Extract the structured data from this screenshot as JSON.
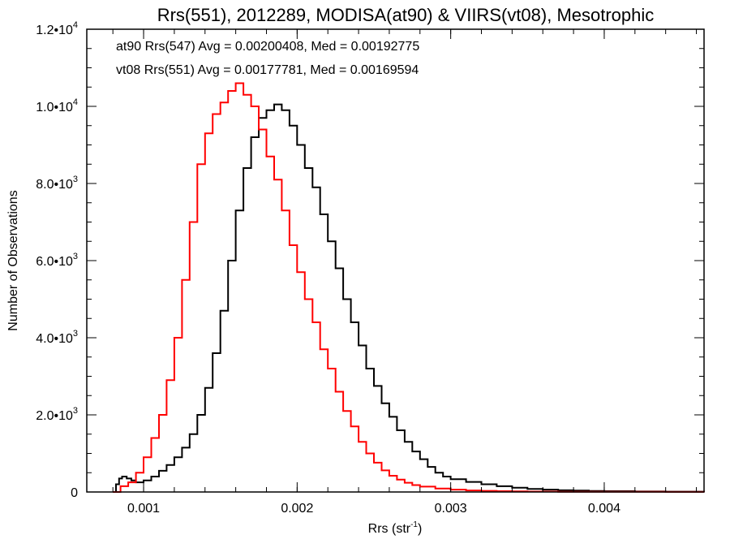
{
  "chart_data": {
    "type": "line",
    "title": "Rrs(551), 2012289, MODISA(at90) & VIIRS(vt08), Mesotrophic",
    "xlabel_main": "Rrs (str",
    "xlabel_sup": "-1",
    "xlabel_close": ")",
    "ylabel": "Number of Observations",
    "xlim": [
      0.00063,
      0.00465
    ],
    "ylim": [
      0,
      12000
    ],
    "x_ticks": [
      {
        "value": 0.001,
        "label": "0.001"
      },
      {
        "value": 0.002,
        "label": "0.002"
      },
      {
        "value": 0.003,
        "label": "0.003"
      },
      {
        "value": 0.004,
        "label": "0.004"
      }
    ],
    "y_ticks": [
      {
        "value": 0,
        "label": "0",
        "sup": ""
      },
      {
        "value": 2000,
        "label": "2.0•10",
        "sup": "3"
      },
      {
        "value": 4000,
        "label": "4.0•10",
        "sup": "3"
      },
      {
        "value": 6000,
        "label": "6.0•10",
        "sup": "3"
      },
      {
        "value": 8000,
        "label": "8.0•10",
        "sup": "3"
      },
      {
        "value": 10000,
        "label": "1.0•10",
        "sup": "4"
      },
      {
        "value": 12000,
        "label": "1.2•10",
        "sup": "4"
      }
    ],
    "annotations": [
      {
        "text": "at90 Rrs(547) Avg = 0.00200408, Med = 0.00192775",
        "color": "#000000"
      },
      {
        "text": "vt08 Rrs(551) Avg = 0.00177781, Med = 0.00169594",
        "color": "#ff0000"
      }
    ],
    "series": [
      {
        "color": "#000000",
        "points": [
          [
            0.0008,
            0
          ],
          [
            0.00082,
            200
          ],
          [
            0.00084,
            350
          ],
          [
            0.00086,
            400
          ],
          [
            0.00089,
            350
          ],
          [
            0.00092,
            300
          ],
          [
            0.00095,
            250
          ],
          [
            0.001,
            300
          ],
          [
            0.00105,
            400
          ],
          [
            0.0011,
            550
          ],
          [
            0.00115,
            700
          ],
          [
            0.0012,
            900
          ],
          [
            0.00125,
            1150
          ],
          [
            0.0013,
            1500
          ],
          [
            0.00135,
            2000
          ],
          [
            0.0014,
            2700
          ],
          [
            0.00145,
            3600
          ],
          [
            0.0015,
            4700
          ],
          [
            0.00155,
            6000
          ],
          [
            0.0016,
            7300
          ],
          [
            0.00165,
            8400
          ],
          [
            0.0017,
            9200
          ],
          [
            0.00175,
            9700
          ],
          [
            0.0018,
            9900
          ],
          [
            0.00185,
            10050
          ],
          [
            0.0019,
            9900
          ],
          [
            0.00195,
            9500
          ],
          [
            0.002,
            9000
          ],
          [
            0.00205,
            8400
          ],
          [
            0.0021,
            7900
          ],
          [
            0.00215,
            7200
          ],
          [
            0.0022,
            6500
          ],
          [
            0.00225,
            5800
          ],
          [
            0.0023,
            5000
          ],
          [
            0.00235,
            4400
          ],
          [
            0.0024,
            3800
          ],
          [
            0.00245,
            3200
          ],
          [
            0.0025,
            2750
          ],
          [
            0.00255,
            2300
          ],
          [
            0.0026,
            1950
          ],
          [
            0.00265,
            1600
          ],
          [
            0.0027,
            1300
          ],
          [
            0.00275,
            1050
          ],
          [
            0.0028,
            850
          ],
          [
            0.00285,
            650
          ],
          [
            0.0029,
            500
          ],
          [
            0.00295,
            400
          ],
          [
            0.003,
            330
          ],
          [
            0.0031,
            260
          ],
          [
            0.0032,
            200
          ],
          [
            0.0033,
            150
          ],
          [
            0.0034,
            110
          ],
          [
            0.0035,
            80
          ],
          [
            0.0036,
            60
          ],
          [
            0.0037,
            45
          ],
          [
            0.0038,
            35
          ],
          [
            0.0039,
            25
          ],
          [
            0.004,
            20
          ],
          [
            0.0042,
            12
          ],
          [
            0.0044,
            8
          ],
          [
            0.00465,
            5
          ]
        ]
      },
      {
        "color": "#ff0000",
        "points": [
          [
            0.0008,
            0
          ],
          [
            0.00085,
            150
          ],
          [
            0.0009,
            250
          ],
          [
            0.00095,
            500
          ],
          [
            0.001,
            900
          ],
          [
            0.00105,
            1400
          ],
          [
            0.0011,
            2000
          ],
          [
            0.00115,
            2900
          ],
          [
            0.0012,
            4000
          ],
          [
            0.00125,
            5500
          ],
          [
            0.0013,
            7000
          ],
          [
            0.00135,
            8500
          ],
          [
            0.0014,
            9300
          ],
          [
            0.00145,
            9800
          ],
          [
            0.0015,
            10100
          ],
          [
            0.00155,
            10400
          ],
          [
            0.0016,
            10600
          ],
          [
            0.00165,
            10300
          ],
          [
            0.0017,
            10000
          ],
          [
            0.00175,
            9400
          ],
          [
            0.0018,
            8700
          ],
          [
            0.00185,
            8100
          ],
          [
            0.0019,
            7300
          ],
          [
            0.00195,
            6400
          ],
          [
            0.002,
            5700
          ],
          [
            0.00205,
            5000
          ],
          [
            0.0021,
            4400
          ],
          [
            0.00215,
            3700
          ],
          [
            0.0022,
            3200
          ],
          [
            0.00225,
            2600
          ],
          [
            0.0023,
            2100
          ],
          [
            0.00235,
            1700
          ],
          [
            0.0024,
            1300
          ],
          [
            0.00245,
            1000
          ],
          [
            0.0025,
            760
          ],
          [
            0.00255,
            560
          ],
          [
            0.0026,
            420
          ],
          [
            0.00265,
            320
          ],
          [
            0.0027,
            240
          ],
          [
            0.00275,
            180
          ],
          [
            0.0028,
            140
          ],
          [
            0.0029,
            90
          ],
          [
            0.003,
            60
          ],
          [
            0.0031,
            40
          ],
          [
            0.0032,
            30
          ],
          [
            0.0033,
            20
          ],
          [
            0.0034,
            15
          ],
          [
            0.0035,
            10
          ],
          [
            0.0037,
            6
          ],
          [
            0.004,
            4
          ],
          [
            0.0044,
            2
          ],
          [
            0.00465,
            1
          ]
        ]
      }
    ]
  }
}
